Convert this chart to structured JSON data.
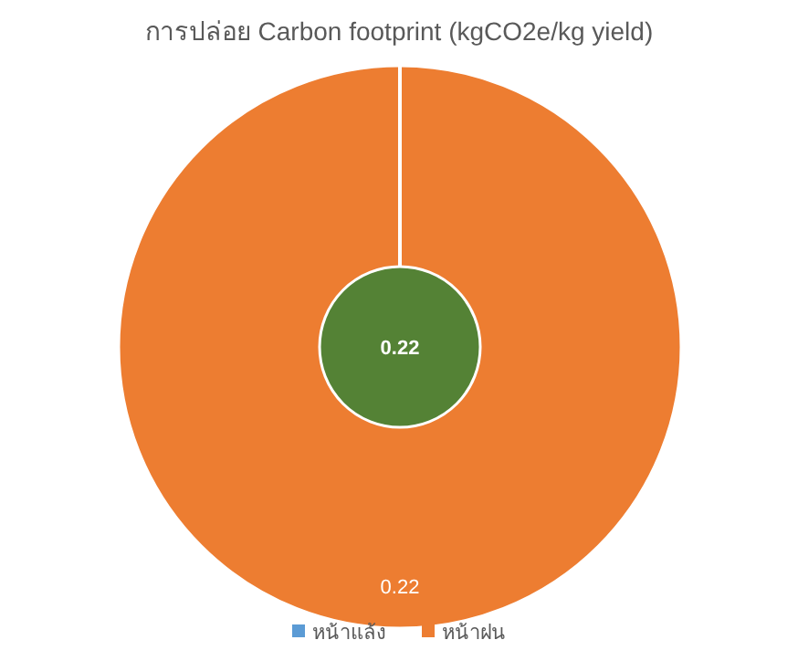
{
  "chart_data": [
    {
      "type": "pie",
      "title": "การปล่อย Carbon footprint (kgCO2e/kg yield)",
      "categories": [
        "หน้าแล้ง",
        "หน้าฝน"
      ],
      "values": [
        0,
        0.22
      ],
      "colors": [
        "#5b9bd5",
        "#ed7d31"
      ],
      "data_labels": true,
      "legend": "bottom"
    },
    {
      "type": "pie",
      "categories": [
        null
      ],
      "values": [
        0.22
      ],
      "colors": [
        "#548235"
      ],
      "data_labels": true
    }
  ]
}
